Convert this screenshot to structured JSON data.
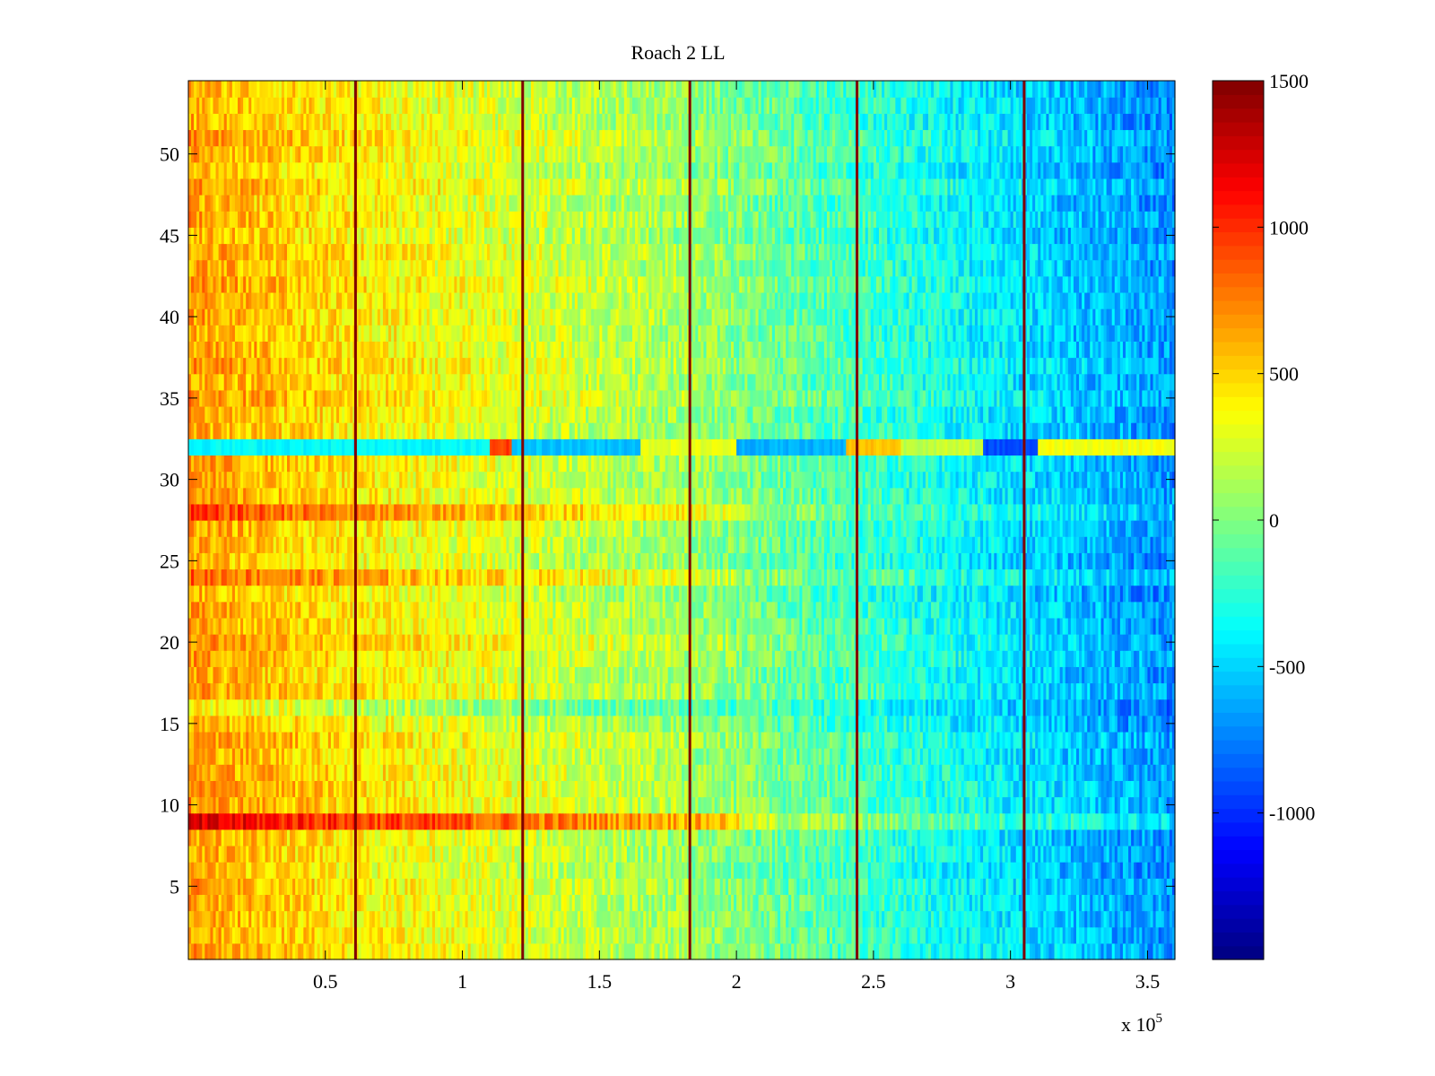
{
  "chart_data": {
    "type": "heatmap",
    "title": "Roach 2 LL",
    "xlabel": "",
    "ylabel": "",
    "x_exponent_label": "x 10",
    "x_exponent_power": "5",
    "xlim": [
      0,
      360000
    ],
    "ylim": [
      0.5,
      54.5
    ],
    "x_ticks": [
      0.5,
      1,
      1.5,
      2,
      2.5,
      3,
      3.5
    ],
    "x_tick_labels": [
      "0.5",
      "1",
      "1.5",
      "2",
      "2.5",
      "3",
      "3.5"
    ],
    "y_ticks": [
      5,
      10,
      15,
      20,
      25,
      30,
      35,
      40,
      45,
      50
    ],
    "y_tick_labels": [
      "5",
      "10",
      "15",
      "20",
      "25",
      "30",
      "35",
      "40",
      "45",
      "50"
    ],
    "rows": 54,
    "colormap": "jet",
    "clim": [
      -1500,
      1500
    ],
    "colorbar_ticks": [
      1500,
      1000,
      500,
      0,
      -500,
      -1000
    ],
    "colorbar_tick_labels": [
      "1500",
      "1000",
      "500",
      "0",
      "-500",
      "-1000"
    ],
    "segment_boundaries_x": [
      61000,
      122000,
      183000,
      244000,
      305000
    ],
    "trend_by_x": [
      [
        0,
        650
      ],
      [
        60000,
        420
      ],
      [
        120000,
        260
      ],
      [
        180000,
        90
      ],
      [
        240000,
        -180
      ],
      [
        300000,
        -450
      ],
      [
        360000,
        -700
      ]
    ],
    "row_offsets": {
      "9": 350,
      "28": 180,
      "32": -400,
      "16": -150,
      "20": 100,
      "24": 120
    },
    "row32_segments": [
      [
        0,
        110000,
        -380
      ],
      [
        110000,
        118000,
        950
      ],
      [
        118000,
        165000,
        -550
      ],
      [
        165000,
        200000,
        300
      ],
      [
        200000,
        240000,
        -600
      ],
      [
        240000,
        260000,
        550
      ],
      [
        260000,
        290000,
        200
      ],
      [
        290000,
        310000,
        -900
      ],
      [
        310000,
        360000,
        350
      ]
    ],
    "boundary_value": 1500
  }
}
